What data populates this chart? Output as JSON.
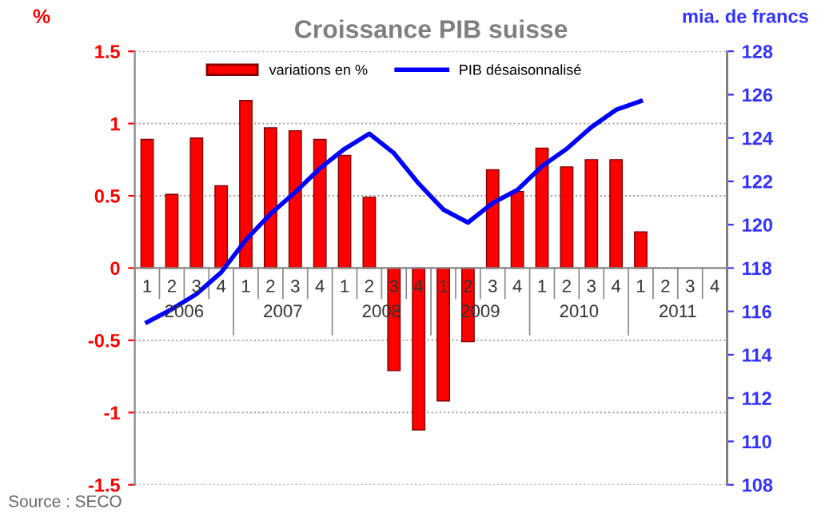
{
  "chart_data": {
    "type": "bar",
    "title": "Croissance PIB suisse",
    "ylabel": "%",
    "y2label": "mia. de francs",
    "categories": [
      "1",
      "2",
      "3",
      "4",
      "1",
      "2",
      "3",
      "4",
      "1",
      "2",
      "3",
      "4",
      "1",
      "2",
      "3",
      "4",
      "1",
      "2",
      "3",
      "4",
      "1",
      "2",
      "3",
      "4"
    ],
    "series": [
      {
        "name": "variations en %",
        "color": "#ff0000",
        "values": [
          0.89,
          0.51,
          0.9,
          0.57,
          1.16,
          0.97,
          0.95,
          0.89,
          0.78,
          0.49,
          -0.71,
          -1.12,
          -0.92,
          -0.51,
          0.68,
          0.53,
          0.83,
          0.7,
          0.75,
          0.75,
          0.25,
          null,
          null,
          null
        ]
      },
      {
        "name": "PIB désaisonnalisé",
        "type": "line",
        "axis": "y2",
        "color": "#0000ff",
        "values": [
          115.5,
          116.1,
          116.8,
          117.8,
          119.3,
          120.5,
          121.5,
          122.6,
          123.5,
          124.2,
          123.3,
          121.9,
          120.7,
          120.1,
          121.0,
          121.6,
          122.7,
          123.5,
          124.5,
          125.3,
          125.7,
          null,
          null,
          null
        ]
      }
    ],
    "ylim": [
      -1.5,
      1.5
    ],
    "yticks": [
      -1.5,
      -1,
      -0.5,
      0,
      0.5,
      1,
      1.5
    ],
    "y2lim": [
      108,
      128
    ],
    "y2ticks": [
      108,
      110,
      112,
      114,
      116,
      118,
      120,
      122,
      124,
      126,
      128
    ],
    "grid": "y",
    "legend": "top left",
    "marker": "none",
    "line_style": "solid",
    "annotations": [
      "2006",
      "2007",
      "2008",
      "2009",
      "2010",
      "2011",
      "Source : SECO"
    ]
  }
}
